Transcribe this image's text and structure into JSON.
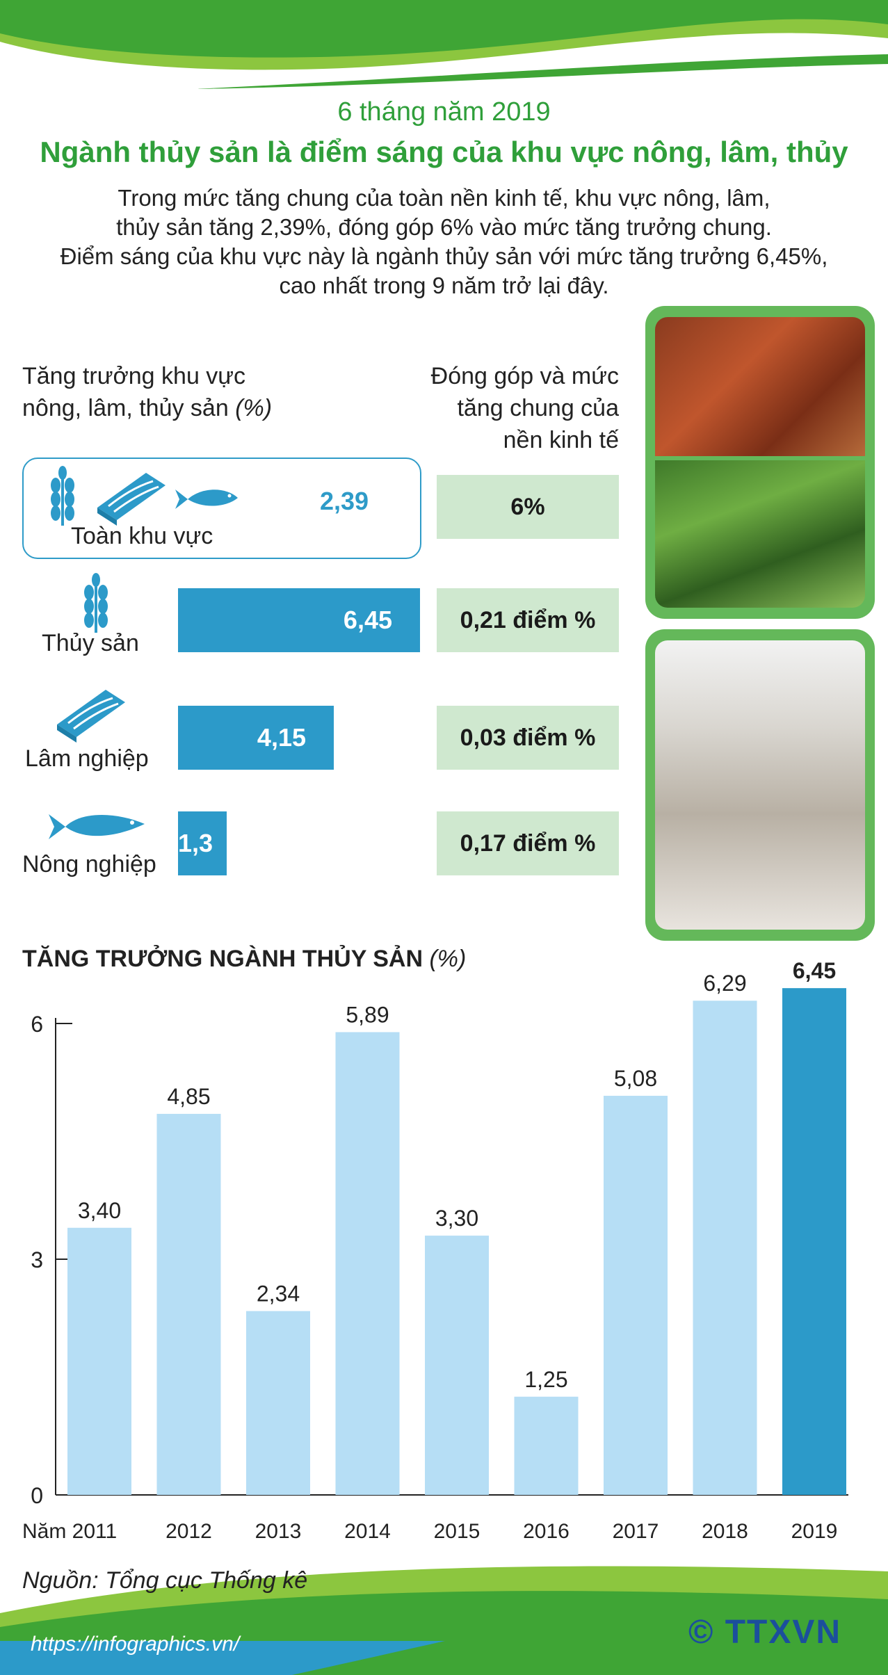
{
  "header": {
    "subtitle": "6 tháng năm 2019",
    "title": "Ngành thủy sản là điểm sáng của khu vực nông, lâm, thủy",
    "intro": [
      "Trong mức tăng chung của toàn nền kinh tế, khu vực nông, lâm,",
      "thủy sản tăng 2,39%, đóng góp 6% vào mức tăng trưởng chung.",
      "Điểm sáng của khu vực này là ngành thủy sản với mức tăng trưởng 6,45%,",
      "cao nhất trong 9 năm trở lại đây."
    ]
  },
  "sector_table": {
    "left_header": [
      "Tăng trưởng khu vực",
      "nông, lâm, thủy sản "
    ],
    "left_header_unit": "(%)",
    "right_header": [
      "Đóng góp và mức",
      "tăng chung của",
      "nền kinh tế"
    ],
    "rows": [
      {
        "label": "Toàn khu vực",
        "value": 2.39,
        "value_text": "2,39",
        "contribution": "6%",
        "icon": "sector-icons"
      },
      {
        "label": "Thủy sản",
        "value": 6.45,
        "value_text": "6,45",
        "contribution": "0,21 điểm %",
        "icon": "wheat-icon"
      },
      {
        "label": "Lâm nghiệp",
        "value": 4.15,
        "value_text": "4,15",
        "contribution": "0,03 điểm %",
        "icon": "wood-plank-icon"
      },
      {
        "label": "Nông nghiệp",
        "value": 1.3,
        "value_text": "1,3",
        "contribution": "0,17 điểm %",
        "icon": "fish-icon"
      }
    ]
  },
  "chart_data": {
    "type": "bar",
    "title": "TĂNG TRƯỞNG NGÀNH THỦY SẢN",
    "title_unit": "(%)",
    "categories": [
      "Năm 2011",
      "2012",
      "2013",
      "2014",
      "2015",
      "2016",
      "2017",
      "2018",
      "2019"
    ],
    "values": [
      3.4,
      4.85,
      2.34,
      5.89,
      3.3,
      1.25,
      5.08,
      6.29,
      6.45
    ],
    "value_labels": [
      "3,40",
      "4,85",
      "2,34",
      "5,89",
      "3,30",
      "1,25",
      "5,08",
      "6,29",
      "6,45"
    ],
    "highlight_index": 8,
    "yticks": [
      "0",
      "3",
      "6"
    ],
    "ylim": [
      0,
      6
    ],
    "colors": {
      "bar": "#b6def5",
      "highlight": "#2c9ac9"
    }
  },
  "footer": {
    "source": "Nguồn: Tổng cục Thống kê",
    "url": "https://infographics.vn/",
    "logo": "© TTXVN"
  },
  "colors": {
    "green": "#2f9f3a",
    "blue": "#2c9ac9",
    "light_green": "#cfe8cf"
  }
}
